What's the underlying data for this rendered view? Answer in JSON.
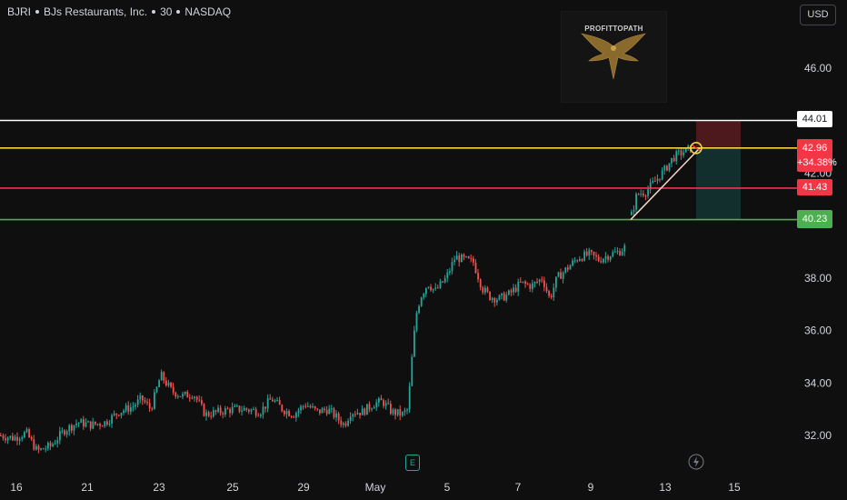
{
  "header": {
    "symbol": "BJRI",
    "name": "BJs Restaurants, Inc.",
    "interval": "30",
    "exchange": "NASDAQ"
  },
  "currency_button": "USD",
  "watermark": {
    "text": "PROFITTOPATH",
    "icon": "eagle-icon"
  },
  "earnings_marker": {
    "label": "E",
    "color": "#26a69a"
  },
  "dividend_marker": {
    "icon": "lightning-icon"
  },
  "colors": {
    "up": "#26a69a",
    "down": "#ef5350",
    "resistance_line": "#ffffff",
    "entry_line": "#f5d142",
    "mid_line": "#f23645",
    "support_line": "#4caf50",
    "trend_line": "#f5d6c8",
    "background": "#0f0f0f"
  },
  "price_badges": {
    "level_44": "44.01",
    "current_price": "42.96",
    "current_change": "+34.38%",
    "level_41": "41.43",
    "level_40": "40.23"
  },
  "chart_data": {
    "type": "candlestick",
    "y_ticks": [
      "32.00",
      "34.00",
      "36.00",
      "38.00",
      "40.00",
      "42.00",
      "44.00",
      "46.00"
    ],
    "x_ticks": [
      "16",
      "21",
      "23",
      "25",
      "29",
      "May",
      "5",
      "7",
      "9",
      "13",
      "15"
    ],
    "horizontal_levels": [
      44.01,
      42.96,
      41.43,
      40.23
    ],
    "trend_line": {
      "from": 40.23,
      "to": 42.96
    },
    "position_tool": {
      "entry": 42.96,
      "stop": 44.01,
      "target": 40.23
    },
    "price_path": [
      [
        0,
        32.0
      ],
      [
        14,
        31.9
      ],
      [
        28,
        32.1
      ],
      [
        40,
        31.4
      ],
      [
        55,
        31.6
      ],
      [
        70,
        32.2
      ],
      [
        85,
        32.5
      ],
      [
        100,
        32.4
      ],
      [
        115,
        32.5
      ],
      [
        130,
        32.9
      ],
      [
        145,
        33.1
      ],
      [
        155,
        33.4
      ],
      [
        165,
        33.0
      ],
      [
        176,
        34.3
      ],
      [
        188,
        33.7
      ],
      [
        200,
        33.5
      ],
      [
        212,
        33.6
      ],
      [
        225,
        32.8
      ],
      [
        240,
        32.9
      ],
      [
        255,
        33.0
      ],
      [
        270,
        33.0
      ],
      [
        285,
        32.9
      ],
      [
        298,
        33.4
      ],
      [
        310,
        33.0
      ],
      [
        322,
        32.8
      ],
      [
        335,
        33.2
      ],
      [
        348,
        32.9
      ],
      [
        360,
        33.0
      ],
      [
        372,
        32.6
      ],
      [
        378,
        32.4
      ],
      [
        385,
        32.9
      ],
      [
        398,
        32.9
      ],
      [
        410,
        33.2
      ],
      [
        420,
        33.3
      ],
      [
        430,
        32.9
      ],
      [
        442,
        32.8
      ],
      [
        448,
        33.0
      ],
      [
        453,
        35.2
      ],
      [
        457,
        36.6
      ],
      [
        462,
        37.3
      ],
      [
        470,
        37.8
      ],
      [
        478,
        37.5
      ],
      [
        490,
        38.0
      ],
      [
        500,
        38.8
      ],
      [
        510,
        38.7
      ],
      [
        520,
        38.6
      ],
      [
        530,
        37.6
      ],
      [
        538,
        37.3
      ],
      [
        548,
        37.2
      ],
      [
        560,
        37.4
      ],
      [
        572,
        37.8
      ],
      [
        584,
        37.7
      ],
      [
        596,
        38.0
      ],
      [
        604,
        37.2
      ],
      [
        612,
        38.0
      ],
      [
        624,
        38.4
      ],
      [
        636,
        38.8
      ],
      [
        648,
        38.9
      ],
      [
        658,
        38.7
      ],
      [
        670,
        38.9
      ],
      [
        680,
        39.0
      ],
      [
        688,
        39.2
      ]
    ],
    "price_path_2": [
      [
        694,
        40.4
      ],
      [
        700,
        41.2
      ],
      [
        710,
        41.3
      ],
      [
        720,
        41.7
      ],
      [
        730,
        42.1
      ],
      [
        740,
        42.6
      ],
      [
        750,
        42.8
      ],
      [
        760,
        42.96
      ]
    ]
  }
}
